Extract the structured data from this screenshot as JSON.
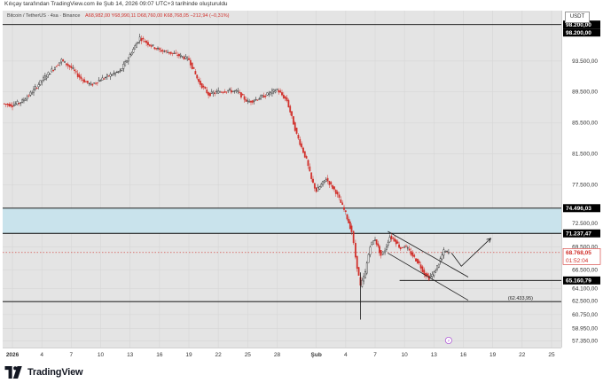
{
  "header": {
    "snapshot_line": "Kılıçay tarafından TradingView.com ile Şub 14, 2026 09:07 UTC+3 tarihinde oluşturuldu",
    "symbol_line": "Bitcoin / TetherUS · 4sa · Binance",
    "ohlc_line": "A68,982,00  Y68,990,11  D68,760,00  K68,768,05  −212,94 (−0,31%)"
  },
  "currency_button": "USDT",
  "footer": {
    "brand": "TradingView"
  },
  "chart_data": {
    "type": "candlestick",
    "symbol": "Bitcoin / TetherUS",
    "interval": "4sa",
    "exchange": "Binance",
    "y_axis": {
      "ylim": [
        56500,
        100000
      ],
      "ticks": [
        {
          "value": 93500,
          "label": "93.500,00"
        },
        {
          "value": 89500,
          "label": "89.500,00"
        },
        {
          "value": 85500,
          "label": "85.500,00"
        },
        {
          "value": 81500,
          "label": "81.500,00"
        },
        {
          "value": 77500,
          "label": "77.500,00"
        },
        {
          "value": 72500,
          "label": "72.500,00"
        },
        {
          "value": 69500,
          "label": "69.500,00"
        },
        {
          "value": 66500,
          "label": "66.500,00"
        },
        {
          "value": 64100,
          "label": "64.100,00"
        },
        {
          "value": 62500,
          "label": "62.500,00"
        },
        {
          "value": 60750,
          "label": "60.750,00"
        },
        {
          "value": 58950,
          "label": "58.950,00"
        },
        {
          "value": 57350,
          "label": "57.350,00"
        }
      ]
    },
    "x_axis": {
      "range_days": [
        -1,
        56
      ],
      "ticks": [
        {
          "day": 0,
          "label": "2026"
        },
        {
          "day": 3,
          "label": "4"
        },
        {
          "day": 6,
          "label": "7"
        },
        {
          "day": 9,
          "label": "10"
        },
        {
          "day": 12,
          "label": "13"
        },
        {
          "day": 15,
          "label": "16"
        },
        {
          "day": 18,
          "label": "19"
        },
        {
          "day": 21,
          "label": "22"
        },
        {
          "day": 24,
          "label": "25"
        },
        {
          "day": 27,
          "label": "28"
        },
        {
          "day": 31,
          "label": "Şub"
        },
        {
          "day": 34,
          "label": "4"
        },
        {
          "day": 37,
          "label": "7"
        },
        {
          "day": 40,
          "label": "10"
        },
        {
          "day": 43,
          "label": "13"
        },
        {
          "day": 46,
          "label": "16"
        },
        {
          "day": 49,
          "label": "19"
        },
        {
          "day": 52,
          "label": "22"
        },
        {
          "day": 55,
          "label": "25"
        }
      ]
    },
    "price_path": [
      [
        -1,
        88000
      ],
      [
        0,
        87800
      ],
      [
        1,
        88300
      ],
      [
        2,
        89500
      ],
      [
        3,
        91000
      ],
      [
        4,
        92300
      ],
      [
        5,
        93600
      ],
      [
        6,
        92600
      ],
      [
        7,
        91200
      ],
      [
        8,
        90400
      ],
      [
        9,
        91100
      ],
      [
        10,
        91700
      ],
      [
        11,
        92200
      ],
      [
        12,
        94300
      ],
      [
        13,
        96500
      ],
      [
        14,
        95600
      ],
      [
        15,
        94900
      ],
      [
        16,
        94600
      ],
      [
        17,
        94200
      ],
      [
        18,
        93700
      ],
      [
        19,
        90800
      ],
      [
        20,
        89200
      ],
      [
        21,
        89500
      ],
      [
        22,
        89700
      ],
      [
        23,
        89500
      ],
      [
        24,
        88200
      ],
      [
        25,
        88600
      ],
      [
        26,
        89200
      ],
      [
        27,
        89800
      ],
      [
        28,
        88400
      ],
      [
        29,
        84000
      ],
      [
        30,
        80700
      ],
      [
        30.5,
        78200
      ],
      [
        31,
        76700
      ],
      [
        32,
        78300
      ],
      [
        33,
        76600
      ],
      [
        34,
        73800
      ],
      [
        34.6,
        71500
      ],
      [
        35,
        68200
      ],
      [
        35.5,
        64400
      ],
      [
        36,
        66200
      ],
      [
        36.5,
        69700
      ],
      [
        37,
        70500
      ],
      [
        37.6,
        68400
      ],
      [
        38,
        69100
      ],
      [
        38.5,
        70800
      ],
      [
        39,
        70400
      ],
      [
        39.6,
        69300
      ],
      [
        40,
        69700
      ],
      [
        40.5,
        68900
      ],
      [
        41,
        68100
      ],
      [
        41.5,
        67300
      ],
      [
        42,
        66100
      ],
      [
        42.5,
        65500
      ],
      [
        43,
        66100
      ],
      [
        43.5,
        67400
      ],
      [
        44,
        68900
      ],
      [
        44.5,
        68768
      ]
    ],
    "wicks": [
      {
        "day": 35.5,
        "low": 60100,
        "high": 66200
      }
    ],
    "horizontal_levels": [
      {
        "value": 98200,
        "label": "98.200,00",
        "label2": "98.200,00",
        "style": "solid",
        "color": "#000000"
      },
      {
        "value": 74496.03,
        "label": "74.496,03",
        "style": "solid",
        "color": "#000000"
      },
      {
        "value": 71237.47,
        "label": "71.237,47",
        "style": "solid",
        "color": "#000000"
      },
      {
        "value": 68768.05,
        "label": "68.768,05",
        "sublabel": "01:52:04",
        "style": "dotted",
        "color": "#d1302b"
      },
      {
        "value": 65160.79,
        "label": "65.160,79",
        "style": "solid",
        "color": "#000000",
        "x_from_day": 39.5
      },
      {
        "value": 62433.95,
        "label": "(62.433,95)",
        "style": "solid",
        "color": "#000000",
        "label_inline": true
      }
    ],
    "zones": [
      {
        "from": 71237.47,
        "to": 74496.03,
        "color": "#c9e3ec"
      }
    ],
    "trendlines": [
      {
        "from": [
          38.3,
          71500
        ],
        "to": [
          46.5,
          65600
        ]
      },
      {
        "from": [
          38.3,
          68700
        ],
        "to": [
          46.5,
          62600
        ]
      }
    ],
    "projection_path": [
      [
        44.8,
        68700
      ],
      [
        45.8,
        67000
      ],
      [
        48.8,
        70600
      ]
    ],
    "colors": {
      "up": "#1a1a1a",
      "down": "#d1302b",
      "price_label": "#d1302b"
    }
  }
}
